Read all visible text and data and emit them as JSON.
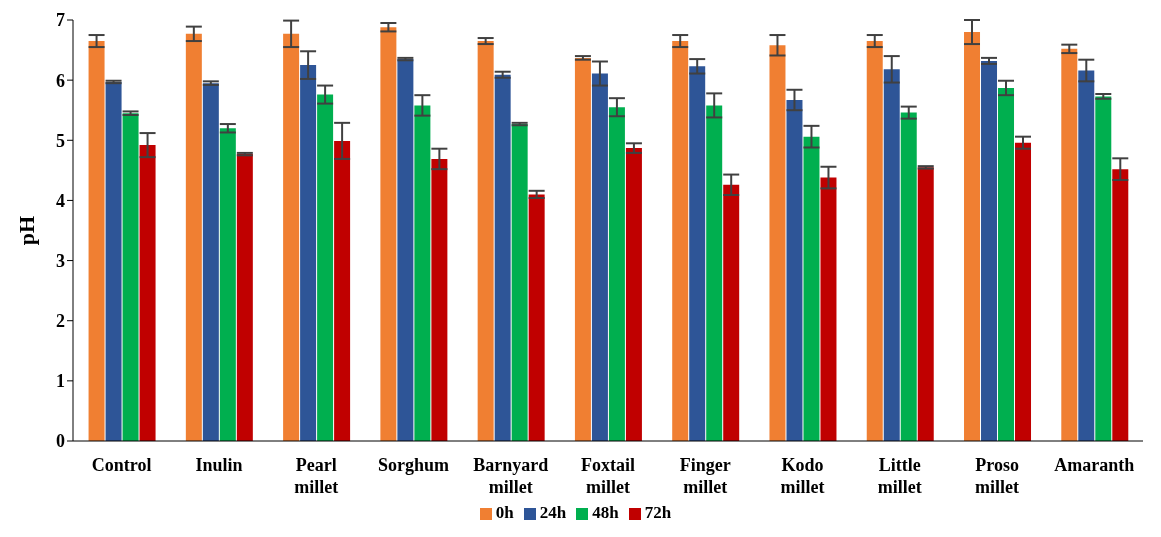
{
  "chart_data": {
    "type": "bar",
    "ylabel": "pH",
    "categories": [
      "Control",
      "Inulin",
      "Pearl millet",
      "Sorghum",
      "Barnyard millet",
      "Foxtail millet",
      "Finger millet",
      "Kodo millet",
      "Little millet",
      "Proso millet",
      "Amaranth"
    ],
    "series": [
      {
        "name": "0h",
        "color": "#f07f32",
        "values": [
          6.65,
          6.77,
          6.77,
          6.88,
          6.65,
          6.37,
          6.65,
          6.58,
          6.65,
          6.8,
          6.52
        ],
        "errors": [
          0.1,
          0.12,
          0.22,
          0.07,
          0.05,
          0.03,
          0.1,
          0.17,
          0.1,
          0.2,
          0.07
        ]
      },
      {
        "name": "24h",
        "color": "#2e5597",
        "values": [
          5.97,
          5.95,
          6.25,
          6.35,
          6.09,
          6.11,
          6.23,
          5.67,
          6.18,
          6.32,
          6.16
        ],
        "errors": [
          0.02,
          0.03,
          0.23,
          0.02,
          0.05,
          0.2,
          0.12,
          0.17,
          0.22,
          0.05,
          0.18
        ]
      },
      {
        "name": "48h",
        "color": "#00af4f",
        "values": [
          5.45,
          5.2,
          5.76,
          5.58,
          5.27,
          5.55,
          5.58,
          5.06,
          5.46,
          5.87,
          5.73
        ],
        "errors": [
          0.03,
          0.07,
          0.15,
          0.17,
          0.02,
          0.15,
          0.2,
          0.18,
          0.1,
          0.12,
          0.04
        ]
      },
      {
        "name": "72h",
        "color": "#c00000",
        "values": [
          4.92,
          4.77,
          4.99,
          4.69,
          4.1,
          4.87,
          4.26,
          4.38,
          4.55,
          4.96,
          4.52
        ],
        "errors": [
          0.2,
          0.02,
          0.3,
          0.17,
          0.06,
          0.08,
          0.17,
          0.18,
          0.02,
          0.1,
          0.18
        ]
      }
    ],
    "ylim": [
      0,
      7
    ],
    "yticks": [
      0,
      1,
      2,
      3,
      4,
      5,
      6,
      7
    ],
    "grid": false,
    "legend": "bottom"
  }
}
